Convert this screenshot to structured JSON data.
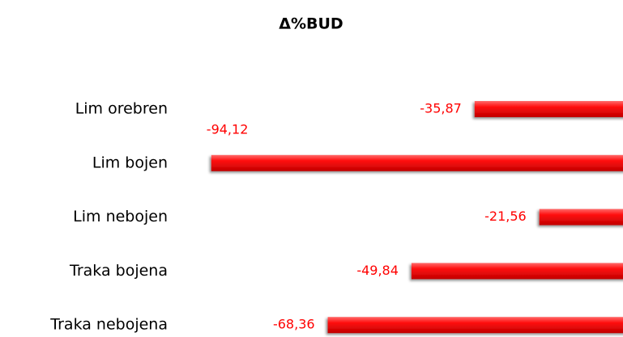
{
  "chart_data": {
    "type": "bar",
    "orientation": "horizontal",
    "title": "Δ%BUD",
    "categories": [
      "Lim orebren",
      "Lim bojen",
      "Lim nebojen",
      "Traka bojena",
      "Traka nebojena"
    ],
    "values": [
      -35.87,
      -94.12,
      -21.56,
      -49.84,
      -68.36
    ],
    "value_labels": [
      "-35,87",
      "-94,12",
      "-21,56",
      "-49,84",
      "-68,36"
    ],
    "color": "#ff0000"
  }
}
